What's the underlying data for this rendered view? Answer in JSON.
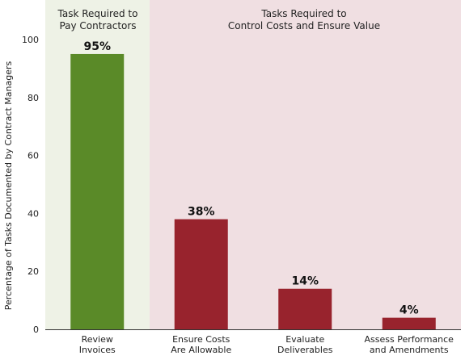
{
  "chart_data": {
    "type": "bar",
    "ylabel": "Percentage of Tasks Documented by Contract Managers",
    "ylim": [
      0,
      100
    ],
    "yticks": [
      0,
      20,
      40,
      60,
      80,
      100
    ],
    "groups": [
      {
        "label": [
          "Task Required to",
          "Pay Contractors"
        ],
        "color": "#eef2e6"
      },
      {
        "label": [
          "Tasks Required to",
          "Control Costs and Ensure Value"
        ],
        "color": "#f0dfe2"
      }
    ],
    "categories": [
      [
        "Review",
        "Invoices"
      ],
      [
        "Ensure Costs",
        "Are Allowable"
      ],
      [
        "Evaluate",
        "Deliverables"
      ],
      [
        "Assess Performance",
        "and Amendments"
      ]
    ],
    "values": [
      95,
      38,
      14,
      4
    ],
    "data_labels": [
      "95%",
      "38%",
      "14%",
      "4%"
    ],
    "bar_colors": [
      "#5a8a28",
      "#98232d",
      "#98232d",
      "#98232d"
    ]
  }
}
